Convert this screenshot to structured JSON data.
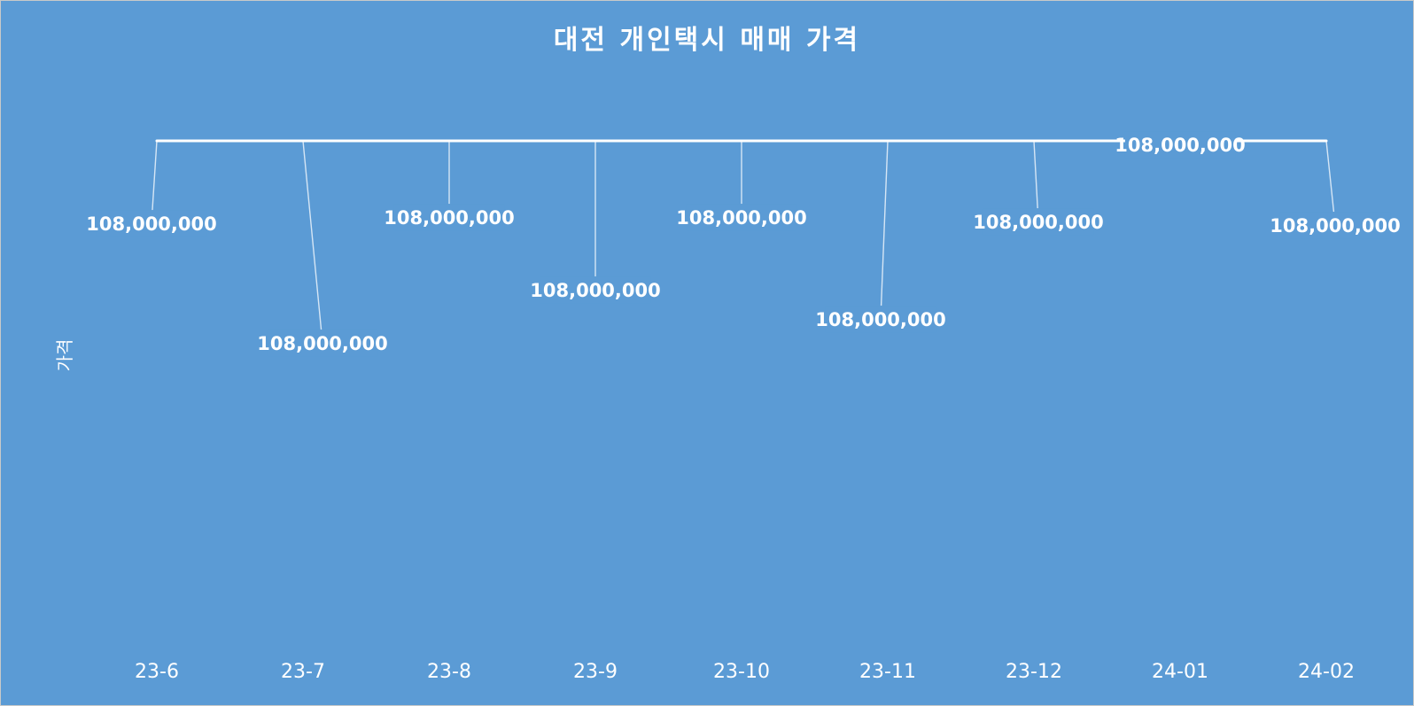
{
  "chart_data": {
    "type": "line",
    "title": "대전 개인택시 매매 가격",
    "xlabel": "",
    "ylabel": "가격",
    "categories": [
      "23-6",
      "23-7",
      "23-8",
      "23-9",
      "23-10",
      "23-11",
      "23-12",
      "24-01",
      "24-02"
    ],
    "series": [
      {
        "values": [
          108000000,
          108000000,
          108000000,
          108000000,
          108000000,
          108000000,
          108000000,
          108000000,
          108000000
        ]
      }
    ],
    "data_labels": [
      "108,000,000",
      "108,000,000",
      "108,000,000",
      "108,000,000",
      "108,000,000",
      "108,000,000",
      "108,000,000",
      "108,000,000",
      "108,000,000"
    ],
    "ylim": [
      0,
      130000000
    ],
    "grid": false,
    "legend": "none",
    "drop_lines": true
  },
  "colors": {
    "background": "#5b9bd5",
    "line": "#ffffff",
    "text": "#ffffff"
  }
}
